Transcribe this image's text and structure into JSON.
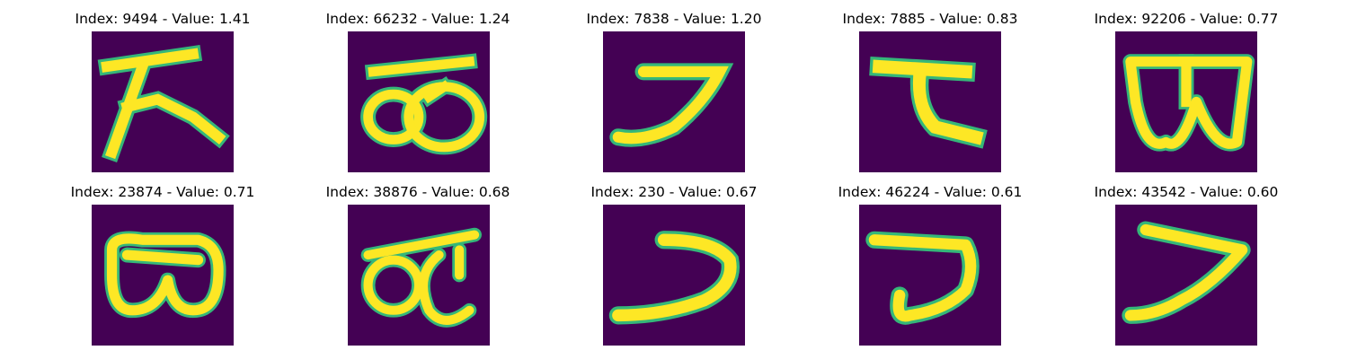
{
  "figure": {
    "background_color": "#440154",
    "stroke_core_color": "#fde725",
    "stroke_edge_color": "#35b779",
    "stroke_mid_color": "#1f9e89",
    "panels": [
      {
        "title": "Index: 9494 - Value: 1.41",
        "glyph": "ka-stroke"
      },
      {
        "title": "Index: 66232 - Value: 1.24",
        "glyph": "loops-stroke"
      },
      {
        "title": "Index: 7838 - Value: 1.20",
        "glyph": "tsu-stroke"
      },
      {
        "title": "Index: 7885 - Value: 0.83",
        "glyph": "te-stroke"
      },
      {
        "title": "Index: 92206 - Value: 0.77",
        "glyph": "box-stroke"
      },
      {
        "title": "Index: 23874 - Value: 0.71",
        "glyph": "goggles-stroke"
      },
      {
        "title": "Index: 38876 - Value: 0.68",
        "glyph": "loops-stroke-b"
      },
      {
        "title": "Index: 230 - Value: 0.67",
        "glyph": "tsu-stroke-b"
      },
      {
        "title": "Index: 46224 - Value: 0.61",
        "glyph": "ko-stroke"
      },
      {
        "title": "Index: 43542 - Value: 0.60",
        "glyph": "tsu-stroke-c"
      }
    ]
  }
}
